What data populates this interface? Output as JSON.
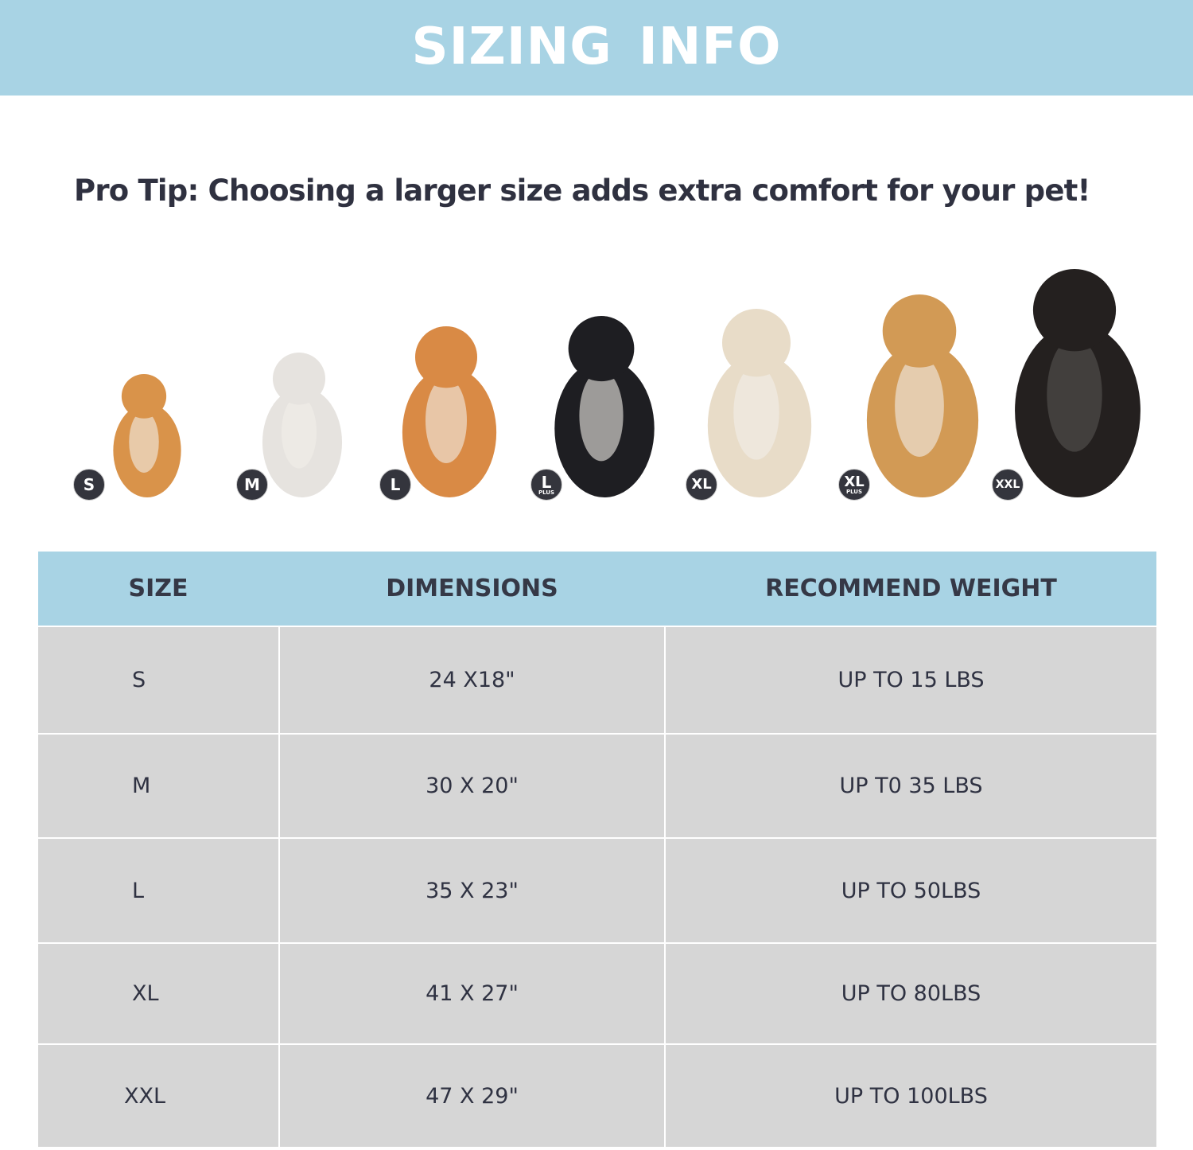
{
  "header": {
    "title": "SIZING  INFO"
  },
  "pro_tip": "Pro Tip: Choosing a larger size adds extra comfort for your pet!",
  "colors": {
    "accent": "#a8d3e4",
    "row_bg": "#d6d6d6",
    "text": "#2f3242",
    "badge": "#34353d"
  },
  "dogs": [
    {
      "badge": "S",
      "badge_sub": "",
      "fur": "#d9934a"
    },
    {
      "badge": "M",
      "badge_sub": "",
      "fur": "#e6e3df"
    },
    {
      "badge": "L",
      "badge_sub": "",
      "fur": "#d98a45"
    },
    {
      "badge": "L",
      "badge_sub": "PLUS",
      "fur": "#1e1e22"
    },
    {
      "badge": "XL",
      "badge_sub": "",
      "fur": "#e8dcc8"
    },
    {
      "badge": "XL",
      "badge_sub": "PLUS",
      "fur": "#d29a55"
    },
    {
      "badge": "XXL",
      "badge_sub": "",
      "fur": "#24201f"
    }
  ],
  "table": {
    "headers": [
      "SIZE",
      "DIMENSIONS",
      "RECOMMEND WEIGHT"
    ],
    "rows": [
      [
        "S",
        "24 X18\"",
        "UP TO 15 LBS"
      ],
      [
        "M",
        "30 X 20\"",
        "UP T0 35 LBS"
      ],
      [
        "L",
        "35 X 23\"",
        "UP TO 50LBS"
      ],
      [
        "XL",
        "41 X 27\"",
        "UP TO 80LBS"
      ],
      [
        "XXL",
        "47 X 29\"",
        "UP TO 100LBS"
      ]
    ]
  }
}
